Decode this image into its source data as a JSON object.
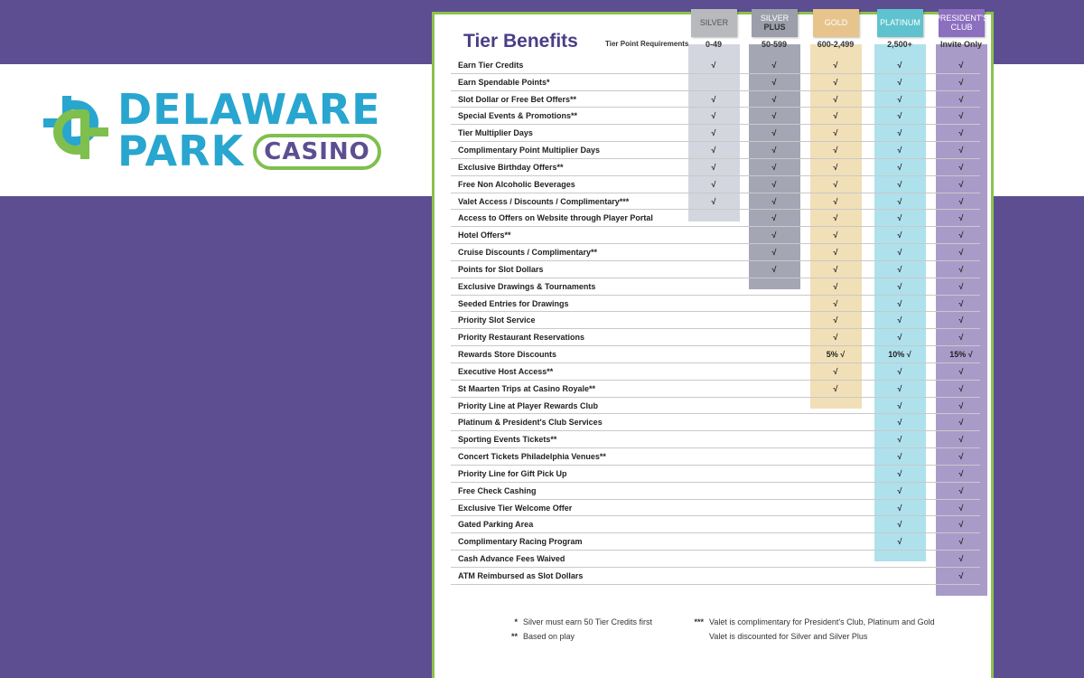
{
  "brand": {
    "line1": "DELAWARE",
    "line2": "PARK",
    "badge": "CASINO",
    "colors": {
      "blue": "#28a6cf",
      "green": "#7fbf4d",
      "purple": "#5d4e91"
    }
  },
  "table": {
    "title": "Tier Benefits",
    "requirements_label": "Tier Point Requirements",
    "tiers": [
      {
        "name": "SILVER",
        "name2": "",
        "requirement": "0-49",
        "label_color": "#b8b9bd",
        "band_color": "#d4d6df"
      },
      {
        "name": "SILVER",
        "name2": "PLUS",
        "requirement": "50-599",
        "label_color": "#9c9eab",
        "band_color": "#a4a6b4"
      },
      {
        "name": "GOLD",
        "name2": "",
        "requirement": "600-2,499",
        "label_color": "#e6c48c",
        "band_color": "#f1dfb7"
      },
      {
        "name": "PLATINUM",
        "name2": "",
        "requirement": "2,500+",
        "label_color": "#5fc3cf",
        "band_color": "#aee1ec"
      },
      {
        "name": "PRESIDENT'S",
        "name2": "CLUB",
        "requirement": "Invite Only",
        "label_color": "#8c6fbf",
        "band_color": "#a89bc8"
      }
    ],
    "rows": [
      {
        "label": "Earn Tier Credits",
        "cells": [
          "√",
          "√",
          "√",
          "√",
          "√"
        ]
      },
      {
        "label": "Earn Spendable Points*",
        "cells": [
          "",
          "√",
          "√",
          "√",
          "√"
        ]
      },
      {
        "label": "Slot Dollar or Free Bet Offers**",
        "cells": [
          "√",
          "√",
          "√",
          "√",
          "√"
        ]
      },
      {
        "label": "Special Events & Promotions**",
        "cells": [
          "√",
          "√",
          "√",
          "√",
          "√"
        ]
      },
      {
        "label": "Tier Multiplier Days",
        "cells": [
          "√",
          "√",
          "√",
          "√",
          "√"
        ]
      },
      {
        "label": "Complimentary Point Multiplier Days",
        "cells": [
          "√",
          "√",
          "√",
          "√",
          "√"
        ]
      },
      {
        "label": "Exclusive Birthday Offers**",
        "cells": [
          "√",
          "√",
          "√",
          "√",
          "√"
        ]
      },
      {
        "label": "Free Non Alcoholic Beverages",
        "cells": [
          "√",
          "√",
          "√",
          "√",
          "√"
        ]
      },
      {
        "label": "Valet Access / Discounts / Complimentary***",
        "cells": [
          "√",
          "√",
          "√",
          "√",
          "√"
        ]
      },
      {
        "label": "Access to Offers on Website through Player Portal",
        "cells": [
          "",
          "√",
          "√",
          "√",
          "√"
        ]
      },
      {
        "label": "Hotel Offers**",
        "cells": [
          "",
          "√",
          "√",
          "√",
          "√"
        ]
      },
      {
        "label": "Cruise Discounts / Complimentary**",
        "cells": [
          "",
          "√",
          "√",
          "√",
          "√"
        ]
      },
      {
        "label": "Points for Slot Dollars",
        "cells": [
          "",
          "√",
          "√",
          "√",
          "√"
        ]
      },
      {
        "label": "Exclusive Drawings & Tournaments",
        "cells": [
          "",
          "",
          "√",
          "√",
          "√"
        ]
      },
      {
        "label": "Seeded Entries for Drawings",
        "cells": [
          "",
          "",
          "√",
          "√",
          "√"
        ]
      },
      {
        "label": "Priority Slot Service",
        "cells": [
          "",
          "",
          "√",
          "√",
          "√"
        ]
      },
      {
        "label": "Priority Restaurant Reservations",
        "cells": [
          "",
          "",
          "√",
          "√",
          "√"
        ]
      },
      {
        "label": "Rewards Store Discounts",
        "cells": [
          "",
          "",
          "5% √",
          "10% √",
          "15% √"
        ]
      },
      {
        "label": "Executive Host Access**",
        "cells": [
          "",
          "",
          "√",
          "√",
          "√"
        ]
      },
      {
        "label": "St Maarten Trips at Casino Royale**",
        "cells": [
          "",
          "",
          "√",
          "√",
          "√"
        ]
      },
      {
        "label": "Priority Line at Player Rewards Club",
        "cells": [
          "",
          "",
          "",
          "√",
          "√"
        ]
      },
      {
        "label": "Platinum & President's Club Services",
        "cells": [
          "",
          "",
          "",
          "√",
          "√"
        ]
      },
      {
        "label": "Sporting Events Tickets**",
        "cells": [
          "",
          "",
          "",
          "√",
          "√"
        ]
      },
      {
        "label": "Concert Tickets Philadelphia Venues**",
        "cells": [
          "",
          "",
          "",
          "√",
          "√"
        ]
      },
      {
        "label": "Priority Line for Gift Pick Up",
        "cells": [
          "",
          "",
          "",
          "√",
          "√"
        ]
      },
      {
        "label": "Free Check Cashing",
        "cells": [
          "",
          "",
          "",
          "√",
          "√"
        ]
      },
      {
        "label": "Exclusive Tier Welcome Offer",
        "cells": [
          "",
          "",
          "",
          "√",
          "√"
        ]
      },
      {
        "label": "Gated Parking Area",
        "cells": [
          "",
          "",
          "",
          "√",
          "√"
        ]
      },
      {
        "label": "Complimentary Racing Program",
        "cells": [
          "",
          "",
          "",
          "√",
          "√"
        ]
      },
      {
        "label": "Cash Advance Fees Waived",
        "cells": [
          "",
          "",
          "",
          "",
          "√"
        ]
      },
      {
        "label": "ATM Reimbursed as Slot Dollars",
        "cells": [
          "",
          "",
          "",
          "",
          "√"
        ]
      }
    ],
    "band_last_row": [
      8,
      12,
      19,
      28,
      30
    ]
  },
  "footnotes": [
    {
      "mark": "*",
      "text": "Silver must earn 50 Tier Credits first"
    },
    {
      "mark": "**",
      "text": "Based on play"
    },
    {
      "mark": "***",
      "text": "Valet is complimentary for President's Club, Platinum and Gold"
    },
    {
      "mark": "",
      "text": "Valet is discounted for Silver and Silver Plus"
    }
  ]
}
